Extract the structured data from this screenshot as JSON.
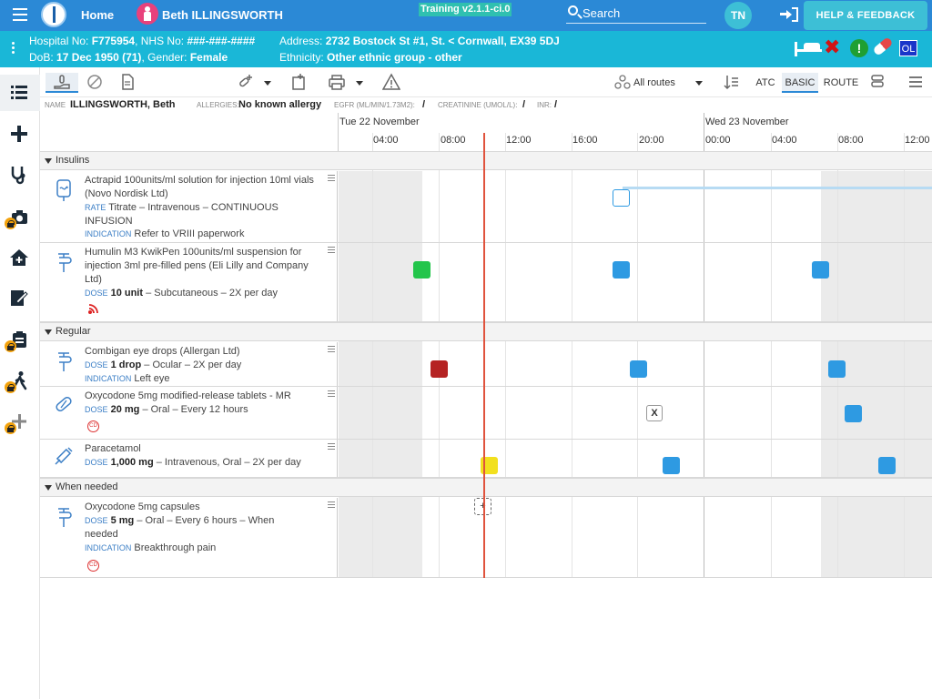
{
  "topbar": {
    "home_label": "Home",
    "patient_name": "Beth ILLINGSWORTH",
    "training_badge": "Training v2.1.1-ci.0",
    "search_placeholder": "Search",
    "user_initials": "TN",
    "help_label": "HELP & FEEDBACK"
  },
  "banner": {
    "hospital_label": "Hospital No:",
    "hospital_no": "F775954",
    "nhs_label": "NHS No:",
    "nhs_no": "###-###-####",
    "address_label": "Address:",
    "address": "2732 Bostock St #1, St. < Cornwall, EX39 5DJ",
    "dob_label": "DoB:",
    "dob": "17 Dec 1950 (71)",
    "gender_label": "Gender:",
    "gender": "Female",
    "ethnicity_label": "Ethnicity:",
    "ethnicity": "Other ethnic group - other",
    "ol_badge": "OL",
    "alert_badge": "!"
  },
  "toolbar": {
    "routes_label": "All routes",
    "atc_label": "ATC",
    "basic_label": "BASIC",
    "route_label": "ROUTE"
  },
  "info": {
    "name_label": "NAME",
    "name_value": "ILLINGSWORTH, Beth",
    "allergies_label": "ALLERGIES:",
    "allergies_value": "No known allergy",
    "egfr_label": "EGFR (ML/MIN/1.73M2):",
    "egfr_value": "/",
    "creatinine_label": "CREATININE (UMOL/L):",
    "creatinine_value": "/",
    "inr_label": "INR:",
    "inr_value": "/"
  },
  "timeline": {
    "day1": "Tue 22 November",
    "day2": "Wed 23 November",
    "hours": [
      "04:00",
      "08:00",
      "12:00",
      "16:00",
      "20:00",
      "00:00",
      "04:00",
      "08:00",
      "12:00"
    ]
  },
  "sections": {
    "insulins": "Insulins",
    "regular": "Regular",
    "when_needed": "When needed"
  },
  "drugs": {
    "actrapid": {
      "name": "Actrapid 100units/ml solution for injection 10ml vials (Novo Nordisk Ltd)",
      "rate_label": "RATE",
      "rate": "Titrate – Intravenous – CONTINUOUS INFUSION",
      "ind_label": "INDICATION",
      "indication": "Refer to VRIII paperwork"
    },
    "humulin": {
      "name": "Humulin M3 KwikPen 100units/ml suspension for injection 3ml pre-filled pens (Eli Lilly and Company Ltd)",
      "dose_label": "DOSE",
      "dose": "10 unit",
      "detail": "– Subcutaneous – 2X per day"
    },
    "combigan": {
      "name": "Combigan eye drops (Allergan Ltd)",
      "dose_label": "DOSE",
      "dose": "1 drop",
      "detail": "– Ocular – 2X per day",
      "ind_label": "INDICATION",
      "indication": "Left eye"
    },
    "oxy_mr": {
      "name": "Oxycodone 5mg modified-release tablets - MR",
      "dose_label": "DOSE",
      "dose": "20 mg",
      "detail": "– Oral – Every 12 hours",
      "cd_badge": "CD",
      "x_mark": "X"
    },
    "paracetamol": {
      "name": "Paracetamol",
      "dose_label": "DOSE",
      "dose": "1,000 mg",
      "detail": "– Intravenous, Oral – 2X per day"
    },
    "oxy_caps": {
      "name": "Oxycodone 5mg capsules",
      "dose_label": "DOSE",
      "dose": "5 mg",
      "detail": "– Oral – Every 6 hours – When needed",
      "ind_label": "INDICATION",
      "indication": "Breakthrough pain",
      "cd_badge": "CD",
      "prn_mark": "+"
    }
  },
  "colors": {
    "topbar": "#2b89d6",
    "banner": "#1ab7d7",
    "due": "#2e9ae2",
    "given": "#23c54b",
    "missed": "#b52323",
    "now_dose": "#f2e01e",
    "now_line": "#e0533d"
  },
  "icons": [
    "menu-icon",
    "logo-icon",
    "female-patient-icon",
    "search-icon",
    "logout-icon",
    "bed-icon",
    "red-x-icon",
    "alert-icon",
    "pill-icon",
    "list-icon",
    "plus-icon",
    "stethoscope-icon",
    "camera-icon",
    "home-medical-icon",
    "edit-icon",
    "clipboard-icon",
    "walking-icon",
    "lock-icon"
  ]
}
